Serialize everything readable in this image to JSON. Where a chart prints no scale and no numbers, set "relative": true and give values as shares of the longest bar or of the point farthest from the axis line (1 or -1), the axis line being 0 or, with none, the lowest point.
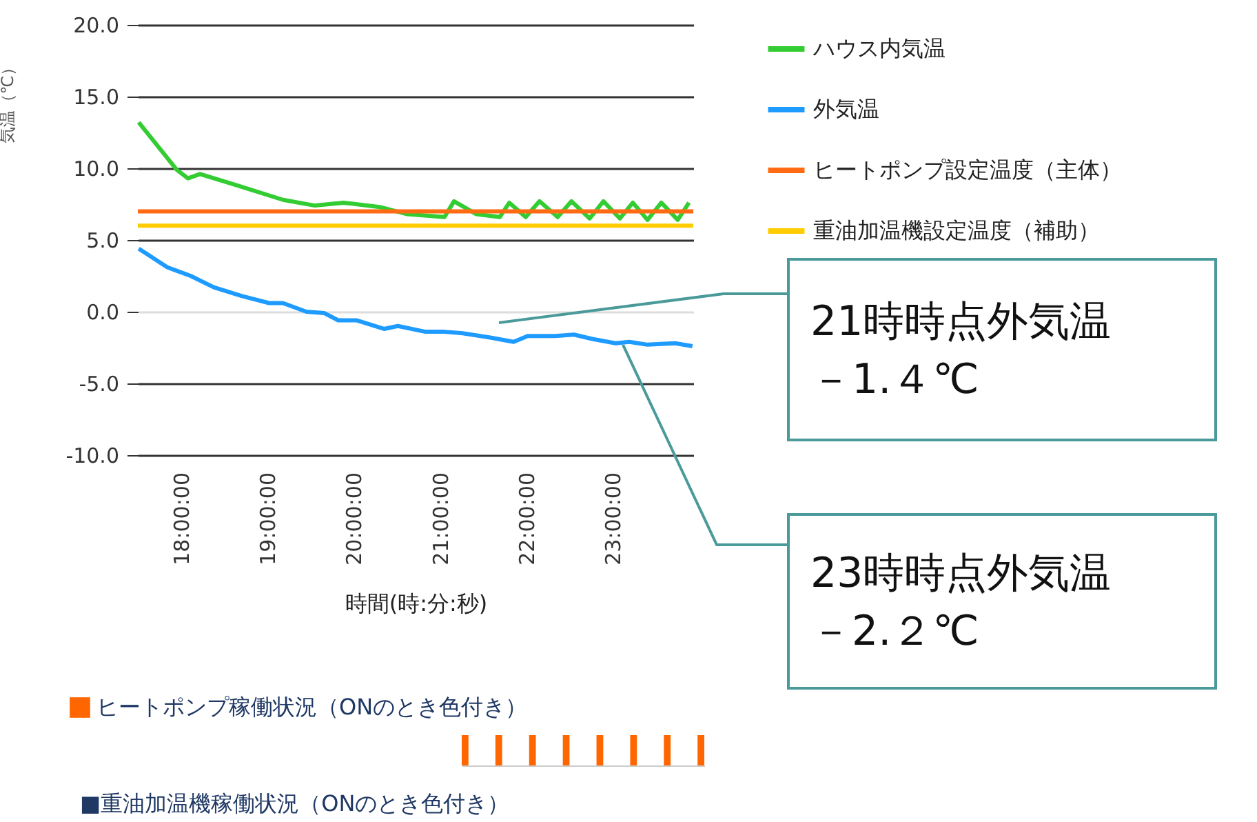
{
  "chart_data": [
    {
      "type": "line",
      "ylabel": "気温（℃）",
      "xlabel": "時間(時:分:秒)",
      "xlim": [
        17.5,
        23.93
      ],
      "xticks": [
        {
          "value": 18,
          "label": "18:00:00"
        },
        {
          "value": 19,
          "label": "19:00:00"
        },
        {
          "value": 20,
          "label": "20:00:00"
        },
        {
          "value": 21,
          "label": "21:00:00"
        },
        {
          "value": 22,
          "label": "22:00:00"
        },
        {
          "value": 23,
          "label": "23:00:00"
        }
      ],
      "ylim": [
        -10,
        20
      ],
      "yticks": [
        {
          "value": -10,
          "label": "-10.0"
        },
        {
          "value": -5,
          "label": "-5.0"
        },
        {
          "value": 0,
          "label": "0.0"
        },
        {
          "value": 5,
          "label": "5.0"
        },
        {
          "value": 10,
          "label": "10.0"
        },
        {
          "value": 15,
          "label": "15.0"
        },
        {
          "value": 20,
          "label": "20.0"
        }
      ],
      "grid": "y",
      "legend": "right",
      "series": [
        {
          "name": "ハウス内気温",
          "color": "#33cc33",
          "x": [
            17.51,
            17.95,
            18.08,
            18.22,
            18.65,
            19.18,
            19.55,
            19.88,
            20.3,
            20.62,
            21.05,
            21.16,
            21.42,
            21.69,
            21.8,
            21.99,
            22.15,
            22.36,
            22.52,
            22.73,
            22.89,
            23.08,
            23.23,
            23.4,
            23.56,
            23.75,
            23.88
          ],
          "values": [
            13.2,
            9.9,
            9.3,
            9.6,
            8.8,
            7.8,
            7.4,
            7.6,
            7.3,
            6.8,
            6.6,
            7.7,
            6.8,
            6.6,
            7.6,
            6.6,
            7.7,
            6.6,
            7.7,
            6.5,
            7.7,
            6.5,
            7.6,
            6.4,
            7.6,
            6.4,
            7.6
          ]
        },
        {
          "name": "外気温",
          "color": "#1e9bff",
          "x": [
            17.51,
            17.84,
            18.11,
            18.38,
            18.7,
            19.02,
            19.18,
            19.45,
            19.66,
            19.82,
            20.03,
            20.35,
            20.51,
            20.83,
            21.05,
            21.26,
            21.58,
            21.85,
            22.01,
            22.33,
            22.55,
            22.76,
            23.03,
            23.19,
            23.4,
            23.72,
            23.92
          ],
          "values": [
            4.4,
            3.1,
            2.5,
            1.7,
            1.1,
            0.6,
            0.6,
            0.0,
            -0.1,
            -0.6,
            -0.6,
            -1.2,
            -1.0,
            -1.4,
            -1.4,
            -1.5,
            -1.8,
            -2.1,
            -1.7,
            -1.7,
            -1.6,
            -1.9,
            -2.2,
            -2.1,
            -2.3,
            -2.2,
            -2.4
          ]
        },
        {
          "name": "ヒートポンプ設定温度（主体）",
          "color": "#ff6a13",
          "x": [
            17.5,
            23.93
          ],
          "values": [
            7.0,
            7.0
          ]
        },
        {
          "name": "重油加温機設定温度（補助）",
          "color": "#ffcc00",
          "x": [
            17.5,
            23.93
          ],
          "values": [
            6.0,
            6.0
          ]
        }
      ],
      "annotations": [
        "21時時点外気温－1.４℃",
        "23時時点外気温－2.２℃"
      ]
    },
    {
      "type": "bar",
      "relative": true,
      "legend": "top left",
      "categories": [
        null,
        null,
        null,
        null,
        null,
        null,
        null,
        null
      ],
      "series": [
        {
          "name": "ヒートポンプ稼働状況（ONのとき色付き）",
          "color": "#ff6600",
          "values": [
            1,
            1,
            1,
            1,
            1,
            1,
            1,
            1
          ]
        }
      ],
      "annotations": [
        "■重油加温機稼働状況（ONのとき色付き）"
      ]
    }
  ]
}
